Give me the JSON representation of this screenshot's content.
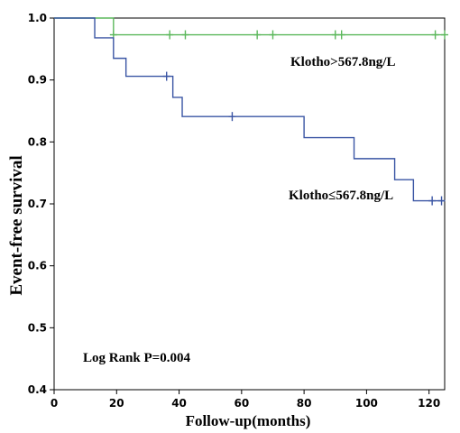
{
  "chart_data": {
    "type": "line",
    "subtype": "kaplan-meier-step",
    "title": "",
    "xlabel": "Follow-up(months)",
    "ylabel": "Event-free survival",
    "xlim": [
      0,
      125
    ],
    "ylim": [
      0.4,
      1.0
    ],
    "x_ticks": [
      "0",
      "20",
      "40",
      "60",
      "80",
      "100",
      "120"
    ],
    "y_ticks": [
      "0.4",
      "0.5",
      "0.6",
      "0.7",
      "0.8",
      "0.9",
      "1.0"
    ],
    "grid": false,
    "legend": "none",
    "series": [
      {
        "name": "Klotho>567.8ng/L",
        "color": "#5cb85c",
        "steps": [
          [
            0,
            1.0
          ],
          [
            19,
            0.973
          ],
          [
            125,
            0.973
          ]
        ],
        "censored": [
          [
            19,
            0.973
          ],
          [
            37,
            0.973
          ],
          [
            42,
            0.973
          ],
          [
            65,
            0.973
          ],
          [
            70,
            0.973
          ],
          [
            90,
            0.973
          ],
          [
            92,
            0.973
          ],
          [
            122,
            0.973
          ],
          [
            125,
            0.973
          ]
        ]
      },
      {
        "name": "Klotho≤567.8ng/L",
        "color": "#3a55a4",
        "steps": [
          [
            0,
            1.0
          ],
          [
            13,
            0.968
          ],
          [
            19,
            0.935
          ],
          [
            23,
            0.906
          ],
          [
            38,
            0.872
          ],
          [
            41,
            0.841
          ],
          [
            80,
            0.807
          ],
          [
            96,
            0.773
          ],
          [
            109,
            0.739
          ],
          [
            115,
            0.705
          ],
          [
            125,
            0.705
          ]
        ],
        "censored": [
          [
            36,
            0.906
          ],
          [
            57,
            0.841
          ],
          [
            121,
            0.705
          ],
          [
            124,
            0.705
          ]
        ]
      }
    ],
    "annotations": [
      {
        "text": "Klotho>567.8ng/L"
      },
      {
        "text": "Klotho≤567.8ng/L"
      },
      {
        "text": "Log Rank P=0.004"
      }
    ]
  }
}
